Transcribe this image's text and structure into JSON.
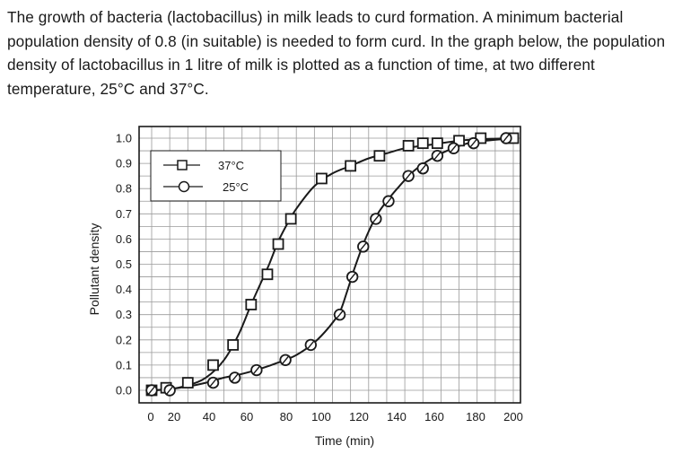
{
  "question": "The growth of bacteria (lactobacillus) in milk leads to curd formation. A minimum bacterial population density of 0.8 (in suitable) is needed to form curd. In the graph below, the population density of lactobacillus in 1 litre of milk is plotted as a function of time, at two different temperature, 25°C and 37°C.",
  "chart_data": {
    "type": "line",
    "xlabel": "Time (min)",
    "ylabel": "Pollutant density",
    "xlim": [
      0,
      200
    ],
    "ylim": [
      0,
      1.0
    ],
    "x_ticks": [
      "0",
      "20",
      "40",
      "60",
      "80",
      "100",
      "120",
      "140",
      "160",
      "180",
      "200"
    ],
    "y_ticks": [
      "0.0",
      "0.1",
      "0.2",
      "0.3",
      "0.4",
      "0.5",
      "0.6",
      "0.7",
      "0.8",
      "0.9",
      "1.0"
    ],
    "grid": true,
    "legend": "top-left",
    "series": [
      {
        "name": "37°C",
        "marker": "square",
        "points": [
          [
            0,
            0
          ],
          [
            8,
            0.01
          ],
          [
            20,
            0.03
          ],
          [
            34,
            0.1
          ],
          [
            45,
            0.18
          ],
          [
            55,
            0.34
          ],
          [
            64,
            0.46
          ],
          [
            70,
            0.58
          ],
          [
            77,
            0.68
          ],
          [
            94,
            0.84
          ],
          [
            110,
            0.89
          ],
          [
            126,
            0.93
          ],
          [
            142,
            0.97
          ],
          [
            150,
            0.98
          ],
          [
            158,
            0.98
          ],
          [
            170,
            0.99
          ],
          [
            182,
            1.0
          ],
          [
            200,
            1.0
          ]
        ],
        "curve": [
          [
            0,
            0
          ],
          [
            10,
            0.005
          ],
          [
            20,
            0.02
          ],
          [
            30,
            0.05
          ],
          [
            40,
            0.12
          ],
          [
            48,
            0.22
          ],
          [
            55,
            0.34
          ],
          [
            60,
            0.42
          ],
          [
            65,
            0.5
          ],
          [
            70,
            0.59
          ],
          [
            75,
            0.66
          ],
          [
            80,
            0.72
          ],
          [
            90,
            0.81
          ],
          [
            100,
            0.86
          ],
          [
            110,
            0.89
          ],
          [
            120,
            0.92
          ],
          [
            130,
            0.94
          ],
          [
            140,
            0.96
          ],
          [
            150,
            0.97
          ],
          [
            160,
            0.98
          ],
          [
            170,
            0.99
          ],
          [
            180,
            0.995
          ],
          [
            200,
            1.0
          ]
        ]
      },
      {
        "name": "25°C",
        "marker": "circle",
        "points": [
          [
            0,
            0
          ],
          [
            10,
            0
          ],
          [
            34,
            0.03
          ],
          [
            46,
            0.05
          ],
          [
            58,
            0.08
          ],
          [
            74,
            0.12
          ],
          [
            88,
            0.18
          ],
          [
            104,
            0.3
          ],
          [
            111,
            0.45
          ],
          [
            117,
            0.57
          ],
          [
            124,
            0.68
          ],
          [
            131,
            0.75
          ],
          [
            142,
            0.85
          ],
          [
            150,
            0.88
          ],
          [
            158,
            0.93
          ],
          [
            167,
            0.96
          ],
          [
            178,
            0.98
          ],
          [
            196,
            1.0
          ]
        ],
        "curve": [
          [
            0,
            0
          ],
          [
            10,
            0.005
          ],
          [
            20,
            0.015
          ],
          [
            30,
            0.03
          ],
          [
            40,
            0.05
          ],
          [
            50,
            0.065
          ],
          [
            60,
            0.085
          ],
          [
            70,
            0.11
          ],
          [
            80,
            0.14
          ],
          [
            90,
            0.19
          ],
          [
            98,
            0.25
          ],
          [
            104,
            0.31
          ],
          [
            108,
            0.39
          ],
          [
            112,
            0.48
          ],
          [
            116,
            0.56
          ],
          [
            120,
            0.63
          ],
          [
            125,
            0.7
          ],
          [
            130,
            0.75
          ],
          [
            137,
            0.81
          ],
          [
            145,
            0.87
          ],
          [
            155,
            0.92
          ],
          [
            165,
            0.955
          ],
          [
            175,
            0.98
          ],
          [
            185,
            0.99
          ],
          [
            200,
            1.0
          ]
        ]
      }
    ]
  }
}
